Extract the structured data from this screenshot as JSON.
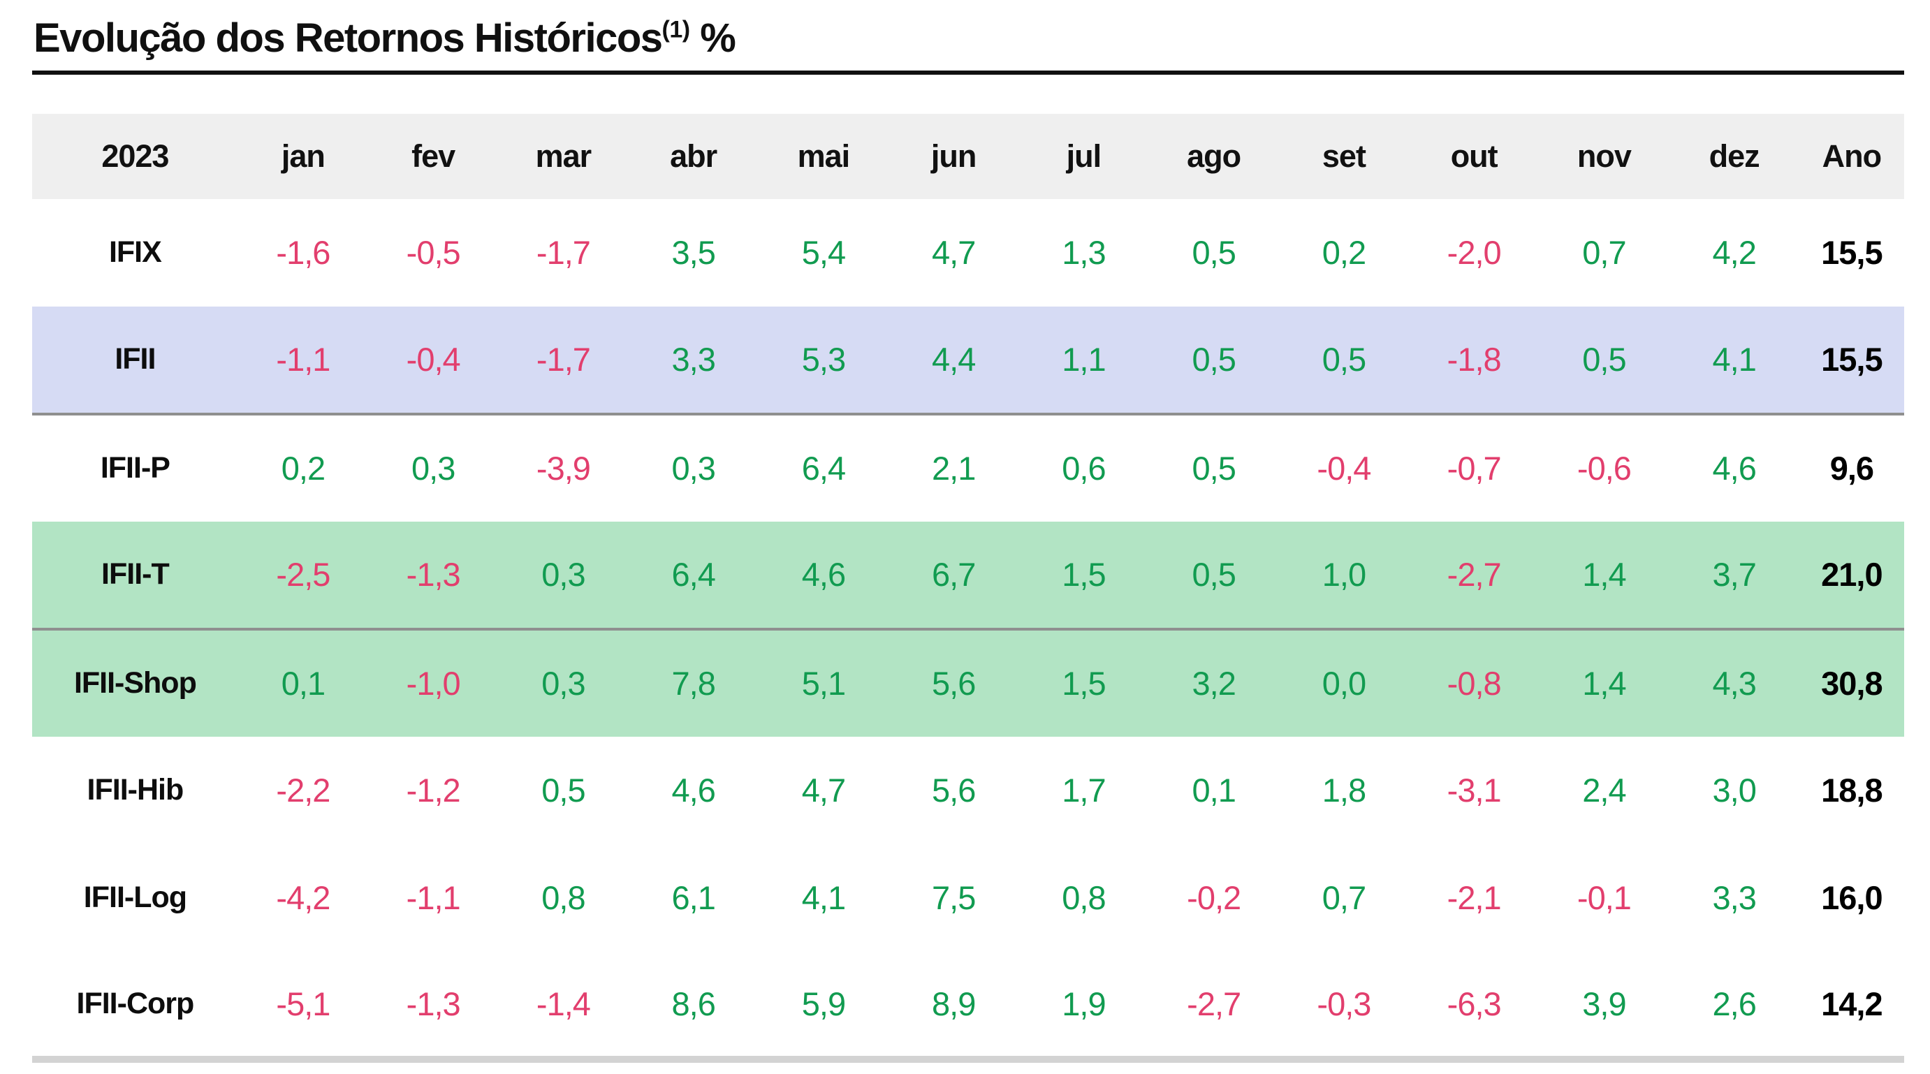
{
  "title": {
    "text": "Evolução dos Retornos Históricos",
    "footnote_marker": "(1)",
    "unit": "%"
  },
  "chart_data": {
    "type": "table",
    "title": "Evolução dos Retornos Históricos (1) %",
    "year": "2023",
    "columns": [
      "2023",
      "jan",
      "fev",
      "mar",
      "abr",
      "mai",
      "jun",
      "jul",
      "ago",
      "set",
      "out",
      "nov",
      "dez",
      "Ano"
    ],
    "rows": [
      {
        "label": "IFIX",
        "highlight": "none",
        "divider_below": false,
        "values": [
          "-1,6",
          "-0,5",
          "-1,7",
          "3,5",
          "5,4",
          "4,7",
          "1,3",
          "0,5",
          "0,2",
          "-2,0",
          "0,7",
          "4,2"
        ],
        "year_total": "15,5"
      },
      {
        "label": "IFII",
        "highlight": "blue",
        "divider_below": true,
        "values": [
          "-1,1",
          "-0,4",
          "-1,7",
          "3,3",
          "5,3",
          "4,4",
          "1,1",
          "0,5",
          "0,5",
          "-1,8",
          "0,5",
          "4,1"
        ],
        "year_total": "15,5"
      },
      {
        "label": "IFII-P",
        "highlight": "none",
        "divider_below": false,
        "values": [
          "0,2",
          "0,3",
          "-3,9",
          "0,3",
          "6,4",
          "2,1",
          "0,6",
          "0,5",
          "-0,4",
          "-0,7",
          "-0,6",
          "4,6"
        ],
        "year_total": "9,6"
      },
      {
        "label": "IFII-T",
        "highlight": "green",
        "divider_below": true,
        "values": [
          "-2,5",
          "-1,3",
          "0,3",
          "6,4",
          "4,6",
          "6,7",
          "1,5",
          "0,5",
          "1,0",
          "-2,7",
          "1,4",
          "3,7"
        ],
        "year_total": "21,0"
      },
      {
        "label": "IFII-Shop",
        "highlight": "green",
        "divider_below": false,
        "values": [
          "0,1",
          "-1,0",
          "0,3",
          "7,8",
          "5,1",
          "5,6",
          "1,5",
          "3,2",
          "0,0",
          "-0,8",
          "1,4",
          "4,3"
        ],
        "year_total": "30,8"
      },
      {
        "label": "IFII-Hib",
        "highlight": "none",
        "divider_below": false,
        "values": [
          "-2,2",
          "-1,2",
          "0,5",
          "4,6",
          "4,7",
          "5,6",
          "1,7",
          "0,1",
          "1,8",
          "-3,1",
          "2,4",
          "3,0"
        ],
        "year_total": "18,8"
      },
      {
        "label": "IFII-Log",
        "highlight": "none",
        "divider_below": false,
        "values": [
          "-4,2",
          "-1,1",
          "0,8",
          "6,1",
          "4,1",
          "7,5",
          "0,8",
          "-0,2",
          "0,7",
          "-2,1",
          "-0,1",
          "3,3"
        ],
        "year_total": "16,0"
      },
      {
        "label": "IFII-Corp",
        "highlight": "none",
        "divider_below": false,
        "values": [
          "-5,1",
          "-1,3",
          "-1,4",
          "8,6",
          "5,9",
          "8,9",
          "1,9",
          "-2,7",
          "-0,3",
          "-6,3",
          "3,9",
          "2,6"
        ],
        "year_total": "14,2"
      }
    ]
  },
  "colors": {
    "positive": "#119b50",
    "negative": "#e23e6d",
    "header_bg": "#efefef",
    "highlight_blue": "#d6dbf4",
    "highlight_green": "#b2e4c4",
    "total_text": "#000000",
    "divider": "#8f8f8f",
    "table_bottom_border": "#d3d3d3",
    "title_underline": "#101010"
  }
}
